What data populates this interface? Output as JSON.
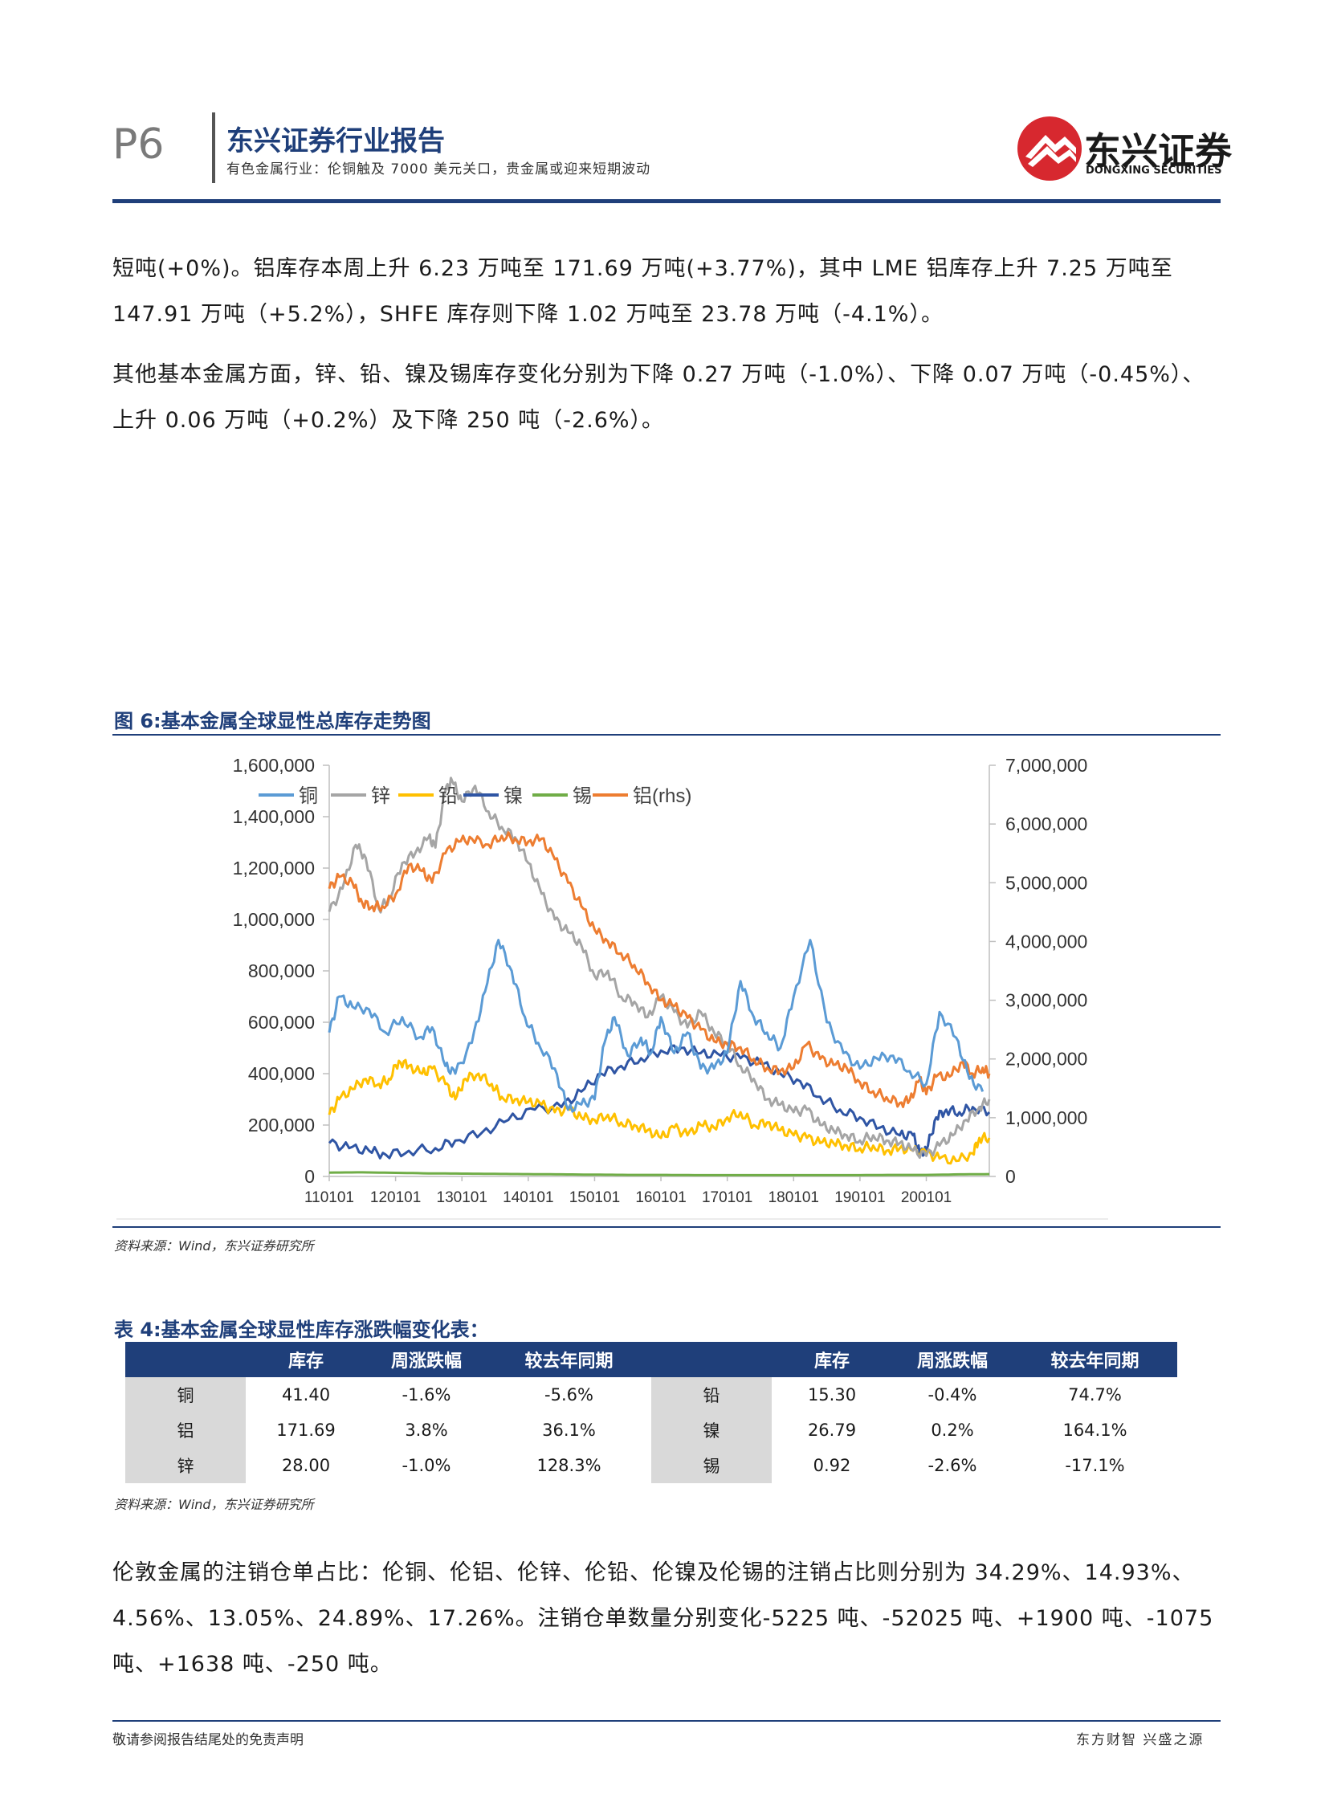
{
  "header": {
    "page_number": "P6",
    "report_title": "东兴证券行业报告",
    "subtitle": "有色金属行业：伦铜触及 7000 美元关口，贵金属或迎来短期波动",
    "logo_cn": "东兴证券",
    "logo_en": "DONGXING SECURITIES"
  },
  "paragraphs": [
    "短吨(+0%)。铝库存本周上升 6.23 万吨至 171.69 万吨(+3.77%)，其中 LME 铝库存上升 7.25 万吨至 147.91 万吨（+5.2%），SHFE 库存则下降 1.02 万吨至 23.78 万吨（-4.1%）。",
    "其他基本金属方面，锌、铅、镍及锡库存变化分别为下降 0.27 万吨（-1.0%）、下降 0.07 万吨（-0.45%）、上升 0.06 万吨（+0.2%）及下降 250 吨（-2.6%）。",
    "伦敦金属的注销仓单占比：伦铜、伦铝、伦锌、伦铅、伦镍及伦锡的注销占比则分别为 34.29%、14.93%、4.56%、13.05%、24.89%、17.26%。注销仓单数量分别变化-5225 吨、-52025 吨、+1900 吨、-1075 吨、+1638 吨、-250 吨。"
  ],
  "figure": {
    "title": "图 6:基本金属全球显性总库存走势图",
    "source": "资料来源：Wind，东兴证券研究所"
  },
  "chart_data": {
    "type": "line",
    "title": "",
    "x_ticks": [
      "110101",
      "120101",
      "130101",
      "140101",
      "150101",
      "160101",
      "170101",
      "180101",
      "190101",
      "200101"
    ],
    "x_range": [
      2011.0,
      2020.95
    ],
    "ylim_left": [
      0,
      1600000
    ],
    "ylim_right": [
      0,
      7000000
    ],
    "left_ticks": [
      "0",
      "200,000",
      "400,000",
      "600,000",
      "800,000",
      "1,000,000",
      "1,200,000",
      "1,400,000",
      "1,600,000"
    ],
    "right_ticks": [
      "0",
      "1,000,000",
      "2,000,000",
      "3,000,000",
      "4,000,000",
      "5,000,000",
      "6,000,000",
      "7,000,000"
    ],
    "legend_position": "top",
    "series": [
      {
        "name": "铜",
        "color": "#5b9bd5",
        "axis": "left",
        "points": [
          [
            2011.0,
            560000
          ],
          [
            2011.15,
            700000
          ],
          [
            2011.35,
            660000
          ],
          [
            2011.6,
            650000
          ],
          [
            2011.85,
            560000
          ],
          [
            2012.1,
            620000
          ],
          [
            2012.35,
            540000
          ],
          [
            2012.55,
            580000
          ],
          [
            2012.75,
            430000
          ],
          [
            2012.9,
            400000
          ],
          [
            2013.15,
            520000
          ],
          [
            2013.35,
            720000
          ],
          [
            2013.55,
            920000
          ],
          [
            2013.75,
            800000
          ],
          [
            2013.95,
            620000
          ],
          [
            2014.15,
            520000
          ],
          [
            2014.4,
            420000
          ],
          [
            2014.6,
            260000
          ],
          [
            2014.8,
            280000
          ],
          [
            2015.0,
            300000
          ],
          [
            2015.15,
            520000
          ],
          [
            2015.3,
            620000
          ],
          [
            2015.5,
            470000
          ],
          [
            2015.7,
            540000
          ],
          [
            2015.85,
            480000
          ],
          [
            2016.0,
            620000
          ],
          [
            2016.2,
            480000
          ],
          [
            2016.4,
            560000
          ],
          [
            2016.6,
            420000
          ],
          [
            2016.8,
            420000
          ],
          [
            2017.0,
            480000
          ],
          [
            2017.2,
            760000
          ],
          [
            2017.4,
            620000
          ],
          [
            2017.6,
            560000
          ],
          [
            2017.8,
            500000
          ],
          [
            2018.0,
            700000
          ],
          [
            2018.25,
            920000
          ],
          [
            2018.5,
            600000
          ],
          [
            2018.75,
            480000
          ],
          [
            2019.0,
            420000
          ],
          [
            2019.25,
            460000
          ],
          [
            2019.5,
            470000
          ],
          [
            2019.75,
            410000
          ],
          [
            2020.0,
            360000
          ],
          [
            2020.2,
            640000
          ],
          [
            2020.45,
            540000
          ],
          [
            2020.65,
            380000
          ],
          [
            2020.85,
            330000
          ]
        ]
      },
      {
        "name": "锌",
        "color": "#a5a5a5",
        "axis": "left",
        "points": [
          [
            2011.0,
            1030000
          ],
          [
            2011.2,
            1120000
          ],
          [
            2011.4,
            1290000
          ],
          [
            2011.55,
            1240000
          ],
          [
            2011.75,
            1040000
          ],
          [
            2011.9,
            1080000
          ],
          [
            2012.1,
            1220000
          ],
          [
            2012.3,
            1260000
          ],
          [
            2012.5,
            1320000
          ],
          [
            2012.6,
            1280000
          ],
          [
            2012.75,
            1500000
          ],
          [
            2012.85,
            1540000
          ],
          [
            2013.0,
            1460000
          ],
          [
            2013.2,
            1520000
          ],
          [
            2013.4,
            1420000
          ],
          [
            2013.6,
            1360000
          ],
          [
            2013.8,
            1320000
          ],
          [
            2014.0,
            1220000
          ],
          [
            2014.2,
            1100000
          ],
          [
            2014.4,
            1000000
          ],
          [
            2014.6,
            950000
          ],
          [
            2014.8,
            900000
          ],
          [
            2015.0,
            780000
          ],
          [
            2015.2,
            800000
          ],
          [
            2015.4,
            700000
          ],
          [
            2015.6,
            680000
          ],
          [
            2015.8,
            620000
          ],
          [
            2016.0,
            700000
          ],
          [
            2016.2,
            640000
          ],
          [
            2016.4,
            580000
          ],
          [
            2016.6,
            640000
          ],
          [
            2016.8,
            560000
          ],
          [
            2017.0,
            520000
          ],
          [
            2017.2,
            430000
          ],
          [
            2017.4,
            380000
          ],
          [
            2017.6,
            300000
          ],
          [
            2017.8,
            280000
          ],
          [
            2018.0,
            250000
          ],
          [
            2018.2,
            260000
          ],
          [
            2018.4,
            200000
          ],
          [
            2018.6,
            180000
          ],
          [
            2018.8,
            160000
          ],
          [
            2019.0,
            140000
          ],
          [
            2019.2,
            160000
          ],
          [
            2019.4,
            140000
          ],
          [
            2019.6,
            130000
          ],
          [
            2019.8,
            100000
          ],
          [
            2020.0,
            80000
          ],
          [
            2020.2,
            120000
          ],
          [
            2020.4,
            160000
          ],
          [
            2020.6,
            220000
          ],
          [
            2020.8,
            270000
          ],
          [
            2020.95,
            300000
          ]
        ]
      },
      {
        "name": "铅",
        "color": "#ffc000",
        "axis": "left",
        "points": [
          [
            2011.0,
            240000
          ],
          [
            2011.15,
            300000
          ],
          [
            2011.35,
            340000
          ],
          [
            2011.55,
            380000
          ],
          [
            2011.75,
            360000
          ],
          [
            2011.9,
            380000
          ],
          [
            2012.05,
            450000
          ],
          [
            2012.2,
            430000
          ],
          [
            2012.4,
            400000
          ],
          [
            2012.55,
            420000
          ],
          [
            2012.75,
            360000
          ],
          [
            2012.9,
            300000
          ],
          [
            2013.05,
            380000
          ],
          [
            2013.25,
            400000
          ],
          [
            2013.45,
            360000
          ],
          [
            2013.6,
            310000
          ],
          [
            2013.8,
            300000
          ],
          [
            2014.0,
            290000
          ],
          [
            2014.2,
            280000
          ],
          [
            2014.4,
            250000
          ],
          [
            2014.6,
            260000
          ],
          [
            2014.8,
            230000
          ],
          [
            2015.0,
            220000
          ],
          [
            2015.2,
            240000
          ],
          [
            2015.4,
            210000
          ],
          [
            2015.6,
            200000
          ],
          [
            2015.8,
            180000
          ],
          [
            2016.0,
            150000
          ],
          [
            2016.2,
            190000
          ],
          [
            2016.4,
            160000
          ],
          [
            2016.6,
            200000
          ],
          [
            2016.8,
            190000
          ],
          [
            2017.0,
            230000
          ],
          [
            2017.2,
            250000
          ],
          [
            2017.4,
            200000
          ],
          [
            2017.6,
            210000
          ],
          [
            2017.8,
            180000
          ],
          [
            2018.0,
            160000
          ],
          [
            2018.2,
            150000
          ],
          [
            2018.4,
            130000
          ],
          [
            2018.6,
            130000
          ],
          [
            2018.8,
            120000
          ],
          [
            2019.0,
            110000
          ],
          [
            2019.2,
            120000
          ],
          [
            2019.4,
            100000
          ],
          [
            2019.6,
            110000
          ],
          [
            2019.8,
            100000
          ],
          [
            2020.0,
            90000
          ],
          [
            2020.2,
            70000
          ],
          [
            2020.45,
            60000
          ],
          [
            2020.7,
            90000
          ],
          [
            2020.8,
            150000
          ],
          [
            2020.95,
            150000
          ]
        ]
      },
      {
        "name": "镍",
        "color": "#2f55a4",
        "axis": "left",
        "points": [
          [
            2011.0,
            130000
          ],
          [
            2011.3,
            110000
          ],
          [
            2011.6,
            100000
          ],
          [
            2011.85,
            85000
          ],
          [
            2012.2,
            100000
          ],
          [
            2012.6,
            110000
          ],
          [
            2012.9,
            140000
          ],
          [
            2013.3,
            170000
          ],
          [
            2013.7,
            220000
          ],
          [
            2014.1,
            260000
          ],
          [
            2014.5,
            270000
          ],
          [
            2014.8,
            330000
          ],
          [
            2015.1,
            400000
          ],
          [
            2015.4,
            430000
          ],
          [
            2015.7,
            460000
          ],
          [
            2016.0,
            490000
          ],
          [
            2016.3,
            500000
          ],
          [
            2016.6,
            480000
          ],
          [
            2016.9,
            470000
          ],
          [
            2017.2,
            460000
          ],
          [
            2017.5,
            440000
          ],
          [
            2017.8,
            400000
          ],
          [
            2018.1,
            370000
          ],
          [
            2018.4,
            310000
          ],
          [
            2018.7,
            260000
          ],
          [
            2019.0,
            230000
          ],
          [
            2019.3,
            190000
          ],
          [
            2019.6,
            160000
          ],
          [
            2019.8,
            160000
          ],
          [
            2019.9,
            90000
          ],
          [
            2020.0,
            100000
          ],
          [
            2020.15,
            230000
          ],
          [
            2020.3,
            260000
          ],
          [
            2020.5,
            250000
          ],
          [
            2020.7,
            270000
          ],
          [
            2020.95,
            250000
          ]
        ]
      },
      {
        "name": "锡",
        "color": "#70ad47",
        "axis": "left",
        "points": [
          [
            2011.0,
            15000
          ],
          [
            2011.5,
            16000
          ],
          [
            2012.0,
            14000
          ],
          [
            2012.5,
            12000
          ],
          [
            2013.0,
            11000
          ],
          [
            2013.5,
            10000
          ],
          [
            2014.0,
            9000
          ],
          [
            2014.5,
            8000
          ],
          [
            2015.0,
            7000
          ],
          [
            2015.5,
            6000
          ],
          [
            2016.0,
            6000
          ],
          [
            2016.5,
            5000
          ],
          [
            2017.0,
            5000
          ],
          [
            2017.5,
            5000
          ],
          [
            2018.0,
            5000
          ],
          [
            2018.5,
            5000
          ],
          [
            2019.0,
            5000
          ],
          [
            2019.5,
            6000
          ],
          [
            2020.0,
            6000
          ],
          [
            2020.5,
            8000
          ],
          [
            2020.95,
            9000
          ]
        ]
      },
      {
        "name": "铝(rhs)",
        "color": "#ed7d31",
        "axis": "right",
        "points": [
          [
            2011.0,
            4900000
          ],
          [
            2011.15,
            5100000
          ],
          [
            2011.35,
            5000000
          ],
          [
            2011.5,
            4650000
          ],
          [
            2011.65,
            4600000
          ],
          [
            2011.8,
            4600000
          ],
          [
            2012.0,
            4800000
          ],
          [
            2012.2,
            5300000
          ],
          [
            2012.4,
            5200000
          ],
          [
            2012.55,
            5000000
          ],
          [
            2012.75,
            5500000
          ],
          [
            2012.95,
            5700000
          ],
          [
            2013.15,
            5750000
          ],
          [
            2013.4,
            5650000
          ],
          [
            2013.6,
            5800000
          ],
          [
            2013.8,
            5750000
          ],
          [
            2014.0,
            5700000
          ],
          [
            2014.2,
            5750000
          ],
          [
            2014.4,
            5400000
          ],
          [
            2014.6,
            5000000
          ],
          [
            2014.8,
            4600000
          ],
          [
            2015.0,
            4200000
          ],
          [
            2015.2,
            4000000
          ],
          [
            2015.4,
            3800000
          ],
          [
            2015.6,
            3600000
          ],
          [
            2015.8,
            3300000
          ],
          [
            2016.0,
            3000000
          ],
          [
            2016.2,
            2900000
          ],
          [
            2016.4,
            2700000
          ],
          [
            2016.6,
            2500000
          ],
          [
            2016.8,
            2300000
          ],
          [
            2017.0,
            2250000
          ],
          [
            2017.2,
            2200000
          ],
          [
            2017.4,
            2000000
          ],
          [
            2017.6,
            1850000
          ],
          [
            2017.8,
            1800000
          ],
          [
            2018.0,
            1850000
          ],
          [
            2018.2,
            2250000
          ],
          [
            2018.4,
            2000000
          ],
          [
            2018.6,
            1900000
          ],
          [
            2018.8,
            1850000
          ],
          [
            2019.0,
            1600000
          ],
          [
            2019.2,
            1450000
          ],
          [
            2019.4,
            1350000
          ],
          [
            2019.6,
            1250000
          ],
          [
            2019.75,
            1300000
          ],
          [
            2019.9,
            1650000
          ],
          [
            2020.0,
            1400000
          ],
          [
            2020.15,
            1700000
          ],
          [
            2020.35,
            1700000
          ],
          [
            2020.55,
            1950000
          ],
          [
            2020.7,
            1750000
          ],
          [
            2020.85,
            1850000
          ],
          [
            2020.95,
            1750000
          ]
        ]
      }
    ]
  },
  "table": {
    "title": "表 4:基本金属全球显性库存涨跌幅变化表：",
    "headers": [
      "",
      "库存",
      "周涨跌幅",
      "较去年同期",
      "",
      "库存",
      "周涨跌幅",
      "较去年同期"
    ],
    "rows": [
      [
        "铜",
        "41.40",
        "-1.6%",
        "-5.6%",
        "铅",
        "15.30",
        "-0.4%",
        "74.7%"
      ],
      [
        "铝",
        "171.69",
        "3.8%",
        "36.1%",
        "镍",
        "26.79",
        "0.2%",
        "164.1%"
      ],
      [
        "锌",
        "28.00",
        "-1.0%",
        "128.3%",
        "锡",
        "0.92",
        "-2.6%",
        "-17.1%"
      ]
    ],
    "source": "资料来源：Wind，东兴证券研究所"
  },
  "footer": {
    "disclaimer": "敬请参阅报告结尾处的免责声明",
    "slogan": "东方财智 兴盛之源"
  }
}
